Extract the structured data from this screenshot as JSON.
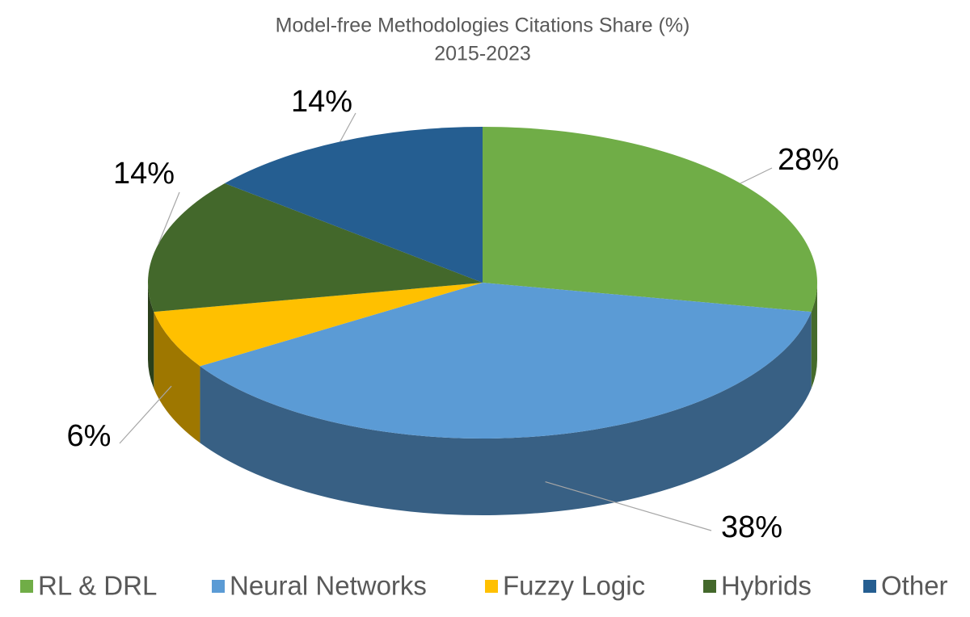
{
  "chart_data": {
    "type": "pie3d",
    "title": "Model-free Methodologies Citations Share (%)",
    "subtitle": "2015-2023",
    "categories": [
      "RL & DRL",
      "Neural Networks",
      "Fuzzy Logic",
      "Hybrids",
      "Other"
    ],
    "values": [
      28,
      38,
      6,
      14,
      14
    ],
    "value_labels": [
      "28%",
      "38%",
      "6%",
      "14%",
      "14%"
    ],
    "colors": [
      "#70ad47",
      "#5b9bd5",
      "#ffc000",
      "#43682b",
      "#255e91"
    ],
    "legend": "bottom"
  }
}
